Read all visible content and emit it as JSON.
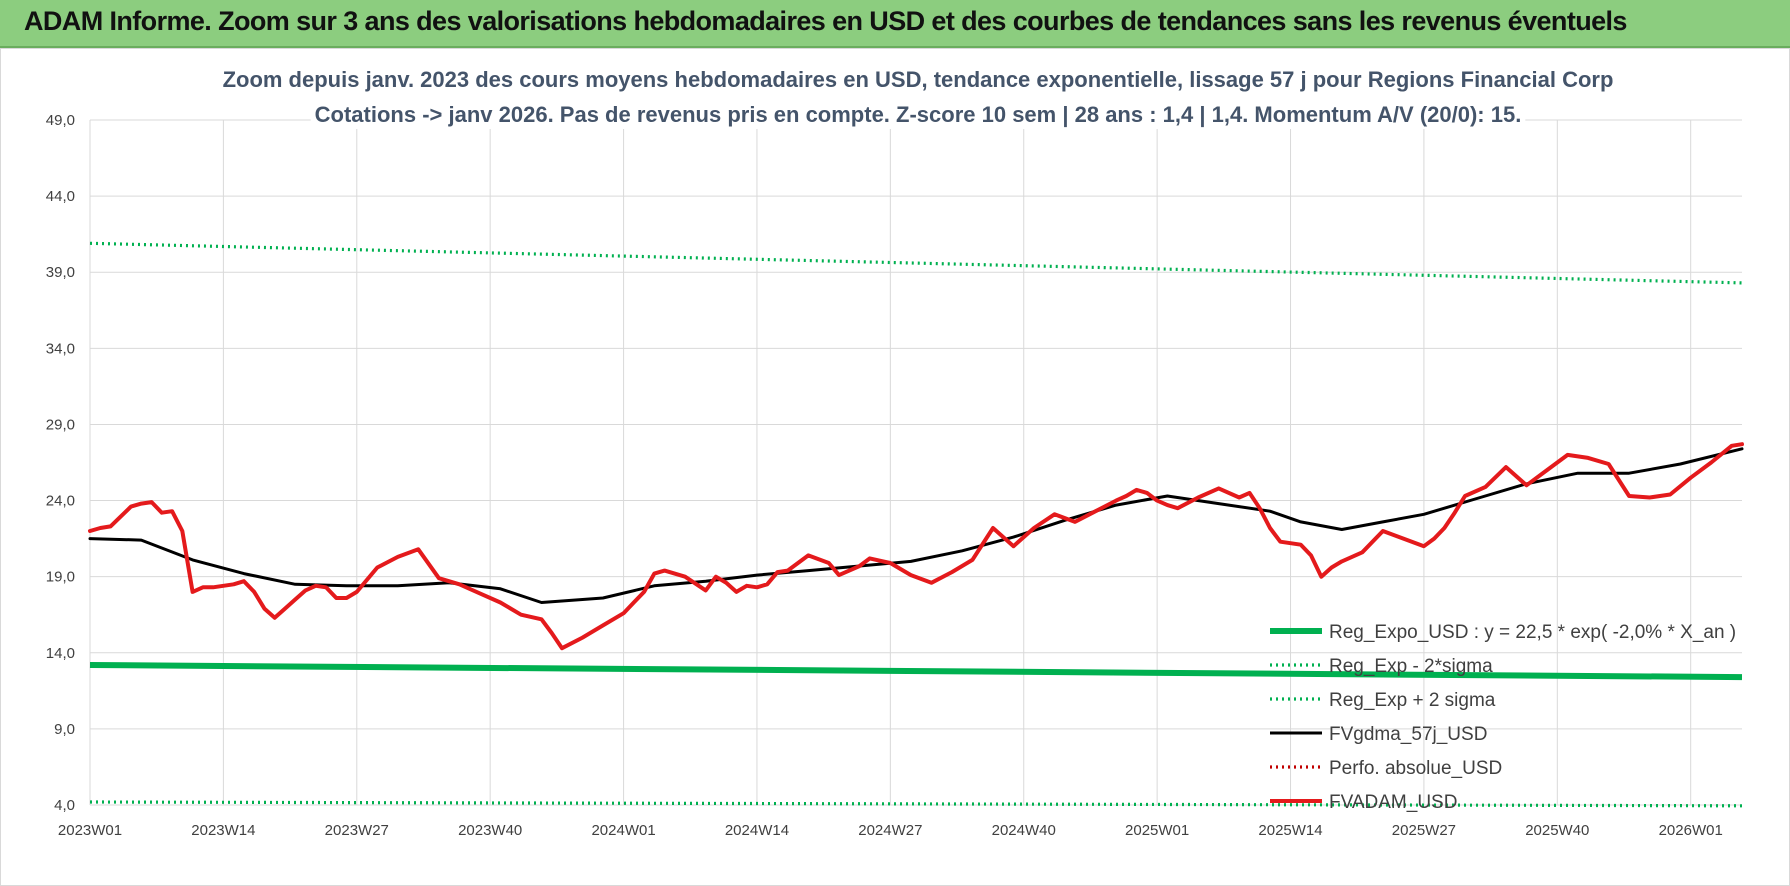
{
  "header": {
    "title": "ADAM Informe. Zoom sur 3 ans des valorisations hebdomadaires en USD et des courbes de tendances sans les revenus éventuels"
  },
  "chart_data": {
    "type": "line",
    "title_line1": "Zoom depuis janv. 2023 des cours moyens hebdomadaires en USD, tendance exponentielle, lissage 57 j pour Regions Financial Corp",
    "title_line2": "Cotations -> janv 2026. Pas de revenus pris en compte. Z-score 10 sem  | 28 ans : 1,4 | 1,4. Momentum A/V (20/0): 15.",
    "ylim": [
      4,
      49
    ],
    "y_ticks": [
      "49,0",
      "44,0",
      "39,0",
      "34,0",
      "29,0",
      "24,0",
      "19,0",
      "14,0",
      "9,0",
      "4,0"
    ],
    "y_tick_values": [
      49,
      44,
      39,
      34,
      29,
      24,
      19,
      14,
      9,
      4
    ],
    "x_ticks": [
      "2023W01",
      "2023W14",
      "2023W27",
      "2023W40",
      "2024W01",
      "2024W14",
      "2024W27",
      "2024W40",
      "2025W01",
      "2025W14",
      "2025W27",
      "2025W40",
      "2026W01"
    ],
    "x_tick_weeks": [
      0,
      13,
      26,
      39,
      52,
      65,
      78,
      91,
      104,
      117,
      130,
      143,
      156
    ],
    "x_range_weeks": [
      0,
      161
    ],
    "legend_position": "bottom-right",
    "series": [
      {
        "name": "Reg_Expo_USD : y = 22,5 * exp( -2,0% *  X_an )",
        "key": "reg",
        "color": "#00b050",
        "style": "solid-thick",
        "x": [
          0,
          161
        ],
        "values": [
          13.2,
          12.4
        ]
      },
      {
        "name": "Reg_Exp - 2*sigma",
        "key": "lower",
        "color": "#00b050",
        "style": "dotted",
        "x": [
          0,
          161
        ],
        "values": [
          4.2,
          3.95
        ]
      },
      {
        "name": "Reg_Exp + 2 sigma",
        "key": "upper",
        "color": "#00b050",
        "style": "dotted",
        "x": [
          0,
          161
        ],
        "values": [
          40.9,
          38.3
        ]
      },
      {
        "name": "FVgdma_57j_USD",
        "key": "ma",
        "color": "#000000",
        "style": "solid",
        "x": [
          0,
          5,
          10,
          15,
          20,
          25,
          30,
          35,
          40,
          44,
          50,
          55,
          60,
          65,
          70,
          75,
          80,
          85,
          90,
          95,
          100,
          105,
          110,
          115,
          118,
          122,
          126,
          130,
          135,
          140,
          145,
          150,
          155,
          161
        ],
        "values": [
          21.5,
          21.4,
          20.1,
          19.2,
          18.5,
          18.4,
          18.4,
          18.6,
          18.2,
          17.3,
          17.6,
          18.4,
          18.7,
          19.1,
          19.4,
          19.7,
          20.0,
          20.7,
          21.6,
          22.7,
          23.7,
          24.3,
          23.8,
          23.3,
          22.6,
          22.1,
          22.6,
          23.1,
          24.1,
          25.1,
          25.8,
          25.8,
          26.4,
          27.4
        ]
      },
      {
        "name": "Perfo. absolue_USD",
        "key": "perf",
        "color": "#c00000",
        "style": "dotted",
        "x": [],
        "values": []
      },
      {
        "name": "FVADAM_USD",
        "key": "price",
        "color": "#e41a1c",
        "style": "solid",
        "x": [
          0,
          1,
          2,
          4,
          5,
          6,
          7,
          8,
          9,
          10,
          11,
          12,
          14,
          15,
          16,
          17,
          18,
          19,
          20,
          21,
          22,
          23,
          24,
          25,
          26,
          28,
          30,
          32,
          34,
          36,
          38,
          40,
          42,
          44,
          45,
          46,
          48,
          50,
          52,
          53,
          54,
          55,
          56,
          58,
          60,
          61,
          62,
          63,
          64,
          65,
          66,
          67,
          68,
          70,
          72,
          73,
          74,
          75,
          76,
          78,
          80,
          82,
          84,
          86,
          88,
          90,
          92,
          94,
          96,
          98,
          100,
          101,
          102,
          103,
          104,
          105,
          106,
          108,
          110,
          112,
          113,
          114,
          115,
          116,
          118,
          119,
          120,
          121,
          122,
          124,
          126,
          128,
          130,
          131,
          132,
          133,
          134,
          136,
          138,
          140,
          142,
          144,
          146,
          148,
          150,
          152,
          154,
          156,
          158,
          160,
          161
        ],
        "values": [
          22.0,
          22.2,
          22.3,
          23.6,
          23.8,
          23.9,
          23.2,
          23.3,
          22.0,
          18.0,
          18.3,
          18.3,
          18.5,
          18.7,
          18.0,
          16.9,
          16.3,
          16.9,
          17.5,
          18.1,
          18.4,
          18.3,
          17.6,
          17.6,
          18.0,
          19.6,
          20.3,
          20.8,
          18.9,
          18.5,
          17.9,
          17.3,
          16.5,
          16.2,
          15.3,
          14.3,
          15.0,
          15.8,
          16.6,
          17.3,
          18.0,
          19.2,
          19.4,
          19.0,
          18.1,
          19.0,
          18.6,
          18.0,
          18.4,
          18.3,
          18.5,
          19.3,
          19.4,
          20.4,
          19.9,
          19.1,
          19.4,
          19.7,
          20.2,
          19.9,
          19.1,
          18.6,
          19.3,
          20.1,
          22.2,
          21.0,
          22.2,
          23.1,
          22.6,
          23.3,
          24.0,
          24.3,
          24.7,
          24.5,
          24.0,
          23.7,
          23.5,
          24.2,
          24.8,
          24.2,
          24.5,
          23.5,
          22.2,
          21.3,
          21.1,
          20.4,
          19.0,
          19.6,
          20.0,
          20.6,
          22.0,
          21.5,
          21.0,
          21.5,
          22.2,
          23.2,
          24.3,
          24.9,
          26.2,
          25.0,
          26.0,
          27.0,
          26.8,
          26.4,
          24.3,
          24.2,
          24.4,
          25.5,
          26.5,
          27.6,
          27.7
        ]
      }
    ]
  }
}
